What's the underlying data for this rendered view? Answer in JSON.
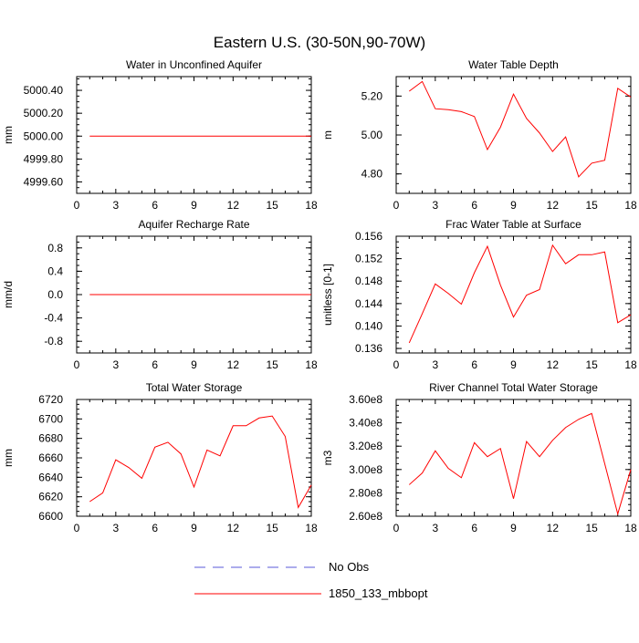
{
  "title": "Eastern U.S. (30-50N,90-70W)",
  "legend": {
    "placement": "bottom-center",
    "entries": [
      {
        "label": "No Obs",
        "color": "#5a5ad8",
        "style": "dashed"
      },
      {
        "label": "1850_133_mbbopt",
        "color": "#ff0000",
        "style": "solid"
      }
    ]
  },
  "chart_data": [
    {
      "type": "line",
      "title": "Water in Unconfined Aquifer",
      "ylabel": "mm",
      "xlim": [
        0,
        18
      ],
      "ylim": [
        4999.5,
        5000.52
      ],
      "xticks": [
        0,
        3,
        6,
        9,
        12,
        15,
        18
      ],
      "xtick_labels": [
        "0",
        "3",
        "6",
        "9",
        "12",
        "15",
        "18"
      ],
      "yticks": [
        4999.6,
        4999.8,
        5000.0,
        5000.2,
        5000.4
      ],
      "ytick_labels": [
        "4999.60",
        "4999.80",
        "5000.00",
        "5000.20",
        "5000.40"
      ],
      "series": [
        {
          "name": "1850_133_mbbopt",
          "color": "#ff0000",
          "x": [
            1,
            2,
            3,
            4,
            5,
            6,
            7,
            8,
            9,
            10,
            11,
            12,
            13,
            14,
            15,
            16,
            17,
            18
          ],
          "values": [
            5000.0,
            5000.0,
            5000.0,
            5000.0,
            5000.0,
            5000.0,
            5000.0,
            5000.0,
            5000.0,
            5000.0,
            5000.0,
            5000.0,
            5000.0,
            5000.0,
            5000.0,
            5000.0,
            5000.0,
            5000.0
          ]
        }
      ]
    },
    {
      "type": "line",
      "title": "Water Table Depth",
      "ylabel": "m",
      "xlim": [
        0,
        18
      ],
      "ylim": [
        4.7,
        5.3
      ],
      "xticks": [
        0,
        3,
        6,
        9,
        12,
        15,
        18
      ],
      "xtick_labels": [
        "0",
        "3",
        "6",
        "9",
        "12",
        "15",
        "18"
      ],
      "yticks": [
        4.8,
        5.0,
        5.2
      ],
      "ytick_labels": [
        "4.80",
        "5.00",
        "5.20"
      ],
      "series": [
        {
          "name": "1850_133_mbbopt",
          "color": "#ff0000",
          "x": [
            1,
            2,
            3,
            4,
            5,
            6,
            7,
            8,
            9,
            10,
            11,
            12,
            13,
            14,
            15,
            16,
            17,
            18
          ],
          "values": [
            5.225,
            5.275,
            5.135,
            5.13,
            5.12,
            5.095,
            4.925,
            5.04,
            5.21,
            5.085,
            5.01,
            4.915,
            4.99,
            4.785,
            4.855,
            4.87,
            5.24,
            5.195
          ]
        }
      ]
    },
    {
      "type": "line",
      "title": "Aquifer Recharge Rate",
      "ylabel": "mm/d",
      "xlim": [
        0,
        18
      ],
      "ylim": [
        -1.0,
        1.0
      ],
      "xticks": [
        0,
        3,
        6,
        9,
        12,
        15,
        18
      ],
      "xtick_labels": [
        "0",
        "3",
        "6",
        "9",
        "12",
        "15",
        "18"
      ],
      "yticks": [
        -0.8,
        -0.4,
        0.0,
        0.4,
        0.8
      ],
      "ytick_labels": [
        "-0.8",
        "-0.4",
        "0.0",
        "0.4",
        "0.8"
      ],
      "series": [
        {
          "name": "1850_133_mbbopt",
          "color": "#ff0000",
          "x": [
            1,
            2,
            3,
            4,
            5,
            6,
            7,
            8,
            9,
            10,
            11,
            12,
            13,
            14,
            15,
            16,
            17,
            18
          ],
          "values": [
            0,
            0,
            0,
            0,
            0,
            0,
            0,
            0,
            0,
            0,
            0,
            0,
            0,
            0,
            0,
            0,
            0,
            0
          ]
        }
      ]
    },
    {
      "type": "line",
      "title": "Frac Water Table at Surface",
      "ylabel": "unitless [0-1]",
      "xlim": [
        0,
        18
      ],
      "ylim": [
        0.1352,
        0.156
      ],
      "xticks": [
        0,
        3,
        6,
        9,
        12,
        15,
        18
      ],
      "xtick_labels": [
        "0",
        "3",
        "6",
        "9",
        "12",
        "15",
        "18"
      ],
      "yticks": [
        0.136,
        0.14,
        0.144,
        0.148,
        0.152,
        0.156
      ],
      "ytick_labels": [
        "0.136",
        "0.140",
        "0.144",
        "0.148",
        "0.152",
        "0.156"
      ],
      "series": [
        {
          "name": "1850_133_mbbopt",
          "color": "#ff0000",
          "x": [
            1,
            2,
            3,
            4,
            5,
            6,
            7,
            8,
            9,
            10,
            11,
            12,
            13,
            14,
            15,
            16,
            17,
            18
          ],
          "values": [
            0.137,
            0.1422,
            0.1475,
            0.1458,
            0.1439,
            0.1495,
            0.1542,
            0.1473,
            0.1416,
            0.1455,
            0.1465,
            0.1544,
            0.1511,
            0.1527,
            0.1527,
            0.1532,
            0.1406,
            0.142
          ]
        }
      ]
    },
    {
      "type": "line",
      "title": "Total Water Storage",
      "ylabel": "mm",
      "xlim": [
        0,
        18
      ],
      "ylim": [
        6600,
        6720
      ],
      "xticks": [
        0,
        3,
        6,
        9,
        12,
        15,
        18
      ],
      "xtick_labels": [
        "0",
        "3",
        "6",
        "9",
        "12",
        "15",
        "18"
      ],
      "yticks": [
        6600,
        6620,
        6640,
        6660,
        6680,
        6700,
        6720
      ],
      "ytick_labels": [
        "6600",
        "6620",
        "6640",
        "6660",
        "6680",
        "6700",
        "6720"
      ],
      "series": [
        {
          "name": "1850_133_mbbopt",
          "color": "#ff0000",
          "x": [
            1,
            2,
            3,
            4,
            5,
            6,
            7,
            8,
            9,
            10,
            11,
            12,
            13,
            14,
            15,
            16,
            17,
            18
          ],
          "values": [
            6615,
            6624,
            6658,
            6650,
            6639,
            6671,
            6676,
            6664,
            6630,
            6668,
            6662,
            6693,
            6693,
            6701,
            6703,
            6682,
            6609,
            6632
          ]
        }
      ]
    },
    {
      "type": "line",
      "title": "River Channel Total Water Storage",
      "ylabel": "m3",
      "xlim": [
        0,
        18
      ],
      "ylim": [
        260000000,
        360000000
      ],
      "xticks": [
        0,
        3,
        6,
        9,
        12,
        15,
        18
      ],
      "xtick_labels": [
        "0",
        "3",
        "6",
        "9",
        "12",
        "15",
        "18"
      ],
      "yticks": [
        260000000,
        280000000,
        300000000,
        320000000,
        340000000,
        360000000
      ],
      "ytick_labels": [
        "2.60e8",
        "2.80e8",
        "3.00e8",
        "3.20e8",
        "3.40e8",
        "3.60e8"
      ],
      "series": [
        {
          "name": "1850_133_mbbopt",
          "color": "#ff0000",
          "x": [
            1,
            2,
            3,
            4,
            5,
            6,
            7,
            8,
            9,
            10,
            11,
            12,
            13,
            14,
            15,
            16,
            17,
            18
          ],
          "values": [
            287000000,
            297000000,
            316000000,
            301000000,
            293000000,
            323000000,
            311000000,
            318000000,
            275000000,
            324000000,
            311000000,
            325000000,
            336000000,
            343000000,
            348000000,
            305000000,
            262000000,
            300000000
          ]
        }
      ]
    }
  ]
}
